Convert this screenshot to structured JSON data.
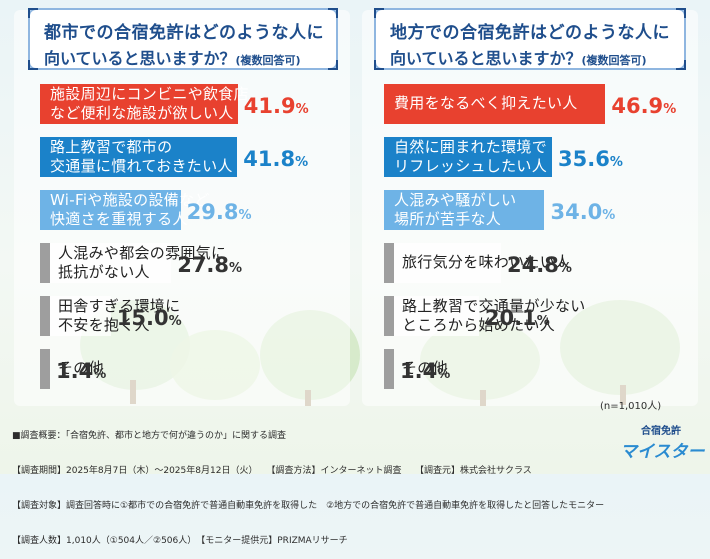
{
  "colors": {
    "red": "#e8412f",
    "blue": "#1b82c9",
    "lightblue": "#6eb3e6",
    "gray": "#9e9e9e",
    "title_blue": "#1f4e8c"
  },
  "left": {
    "question_line1": "都市での合宿免許はどのような人に",
    "question_line2": "向いていると思いますか？",
    "question_note": "(複数回答可)"
  },
  "right": {
    "question_line1": "地方での合宿免許はどのような人に",
    "question_line2": "向いていると思いますか？",
    "question_note": "(複数回答可)"
  },
  "chart_data": [
    {
      "type": "bar",
      "title": "都市での合宿免許はどのような人に向いていると思いますか？(複数回答可)",
      "categories": [
        "施設周辺にコンビニや飲食店\nなど便利な施設が欲しい人",
        "路上教習で都市の\n交通量に慣れておきたい人",
        "Wi-Fiや施設の設備など\n快適さを重視する人",
        "人混みや都会の雰囲気に\n抵抗がない人",
        "田舎すぎる環境に\n不安を抱く人",
        "その他"
      ],
      "values": [
        41.9,
        41.8,
        29.8,
        27.8,
        15.0,
        1.4
      ],
      "value_labels": [
        "41.9",
        "41.8",
        "29.8",
        "27.8",
        "15.0",
        "1.4"
      ],
      "unit": "%",
      "bar_colors": [
        "#e8412f",
        "#1b82c9",
        "#6eb3e6",
        "#9e9e9e",
        "#9e9e9e",
        "#9e9e9e"
      ]
    },
    {
      "type": "bar",
      "title": "地方での合宿免許はどのような人に向いていると思いますか？(複数回答可)",
      "categories": [
        "費用をなるべく抑えたい人",
        "自然に囲まれた環境で\nリフレッシュしたい人",
        "人混みや騒がしい\n場所が苦手な人",
        "旅行気分を味わいたい人",
        "路上教習で交通量が少ない\nところから始めたい人",
        "その他"
      ],
      "values": [
        46.9,
        35.6,
        34.0,
        24.8,
        20.1,
        1.4
      ],
      "value_labels": [
        "46.9",
        "35.6",
        "34.0",
        "24.8",
        "20.1",
        "1.4"
      ],
      "unit": "%",
      "bar_colors": [
        "#e8412f",
        "#1b82c9",
        "#6eb3e6",
        "#9e9e9e",
        "#9e9e9e",
        "#9e9e9e"
      ]
    }
  ],
  "sample_note": "(n=1,010人)",
  "footer_lines": [
    "■調査概要：「合宿免許、都市と地方で何が違うのか」に関する調査",
    "【調査期間】2025年8月7日（木）〜2025年8月12日（火）　　【調査方法】インターネット調査　　【調査元】株式会社サクラス",
    "【調査対象】調査回答時に①都市での合宿免許で普通自動車免許を取得した　②地方での合宿免許で普通自動車免許を取得したと回答したモニター",
    "【調査人数】1,010人（①504人／②506人）　【モニター提供元】PRIZMAリサーチ"
  ],
  "logo": {
    "top": "合宿免許",
    "main": "マイスター"
  }
}
